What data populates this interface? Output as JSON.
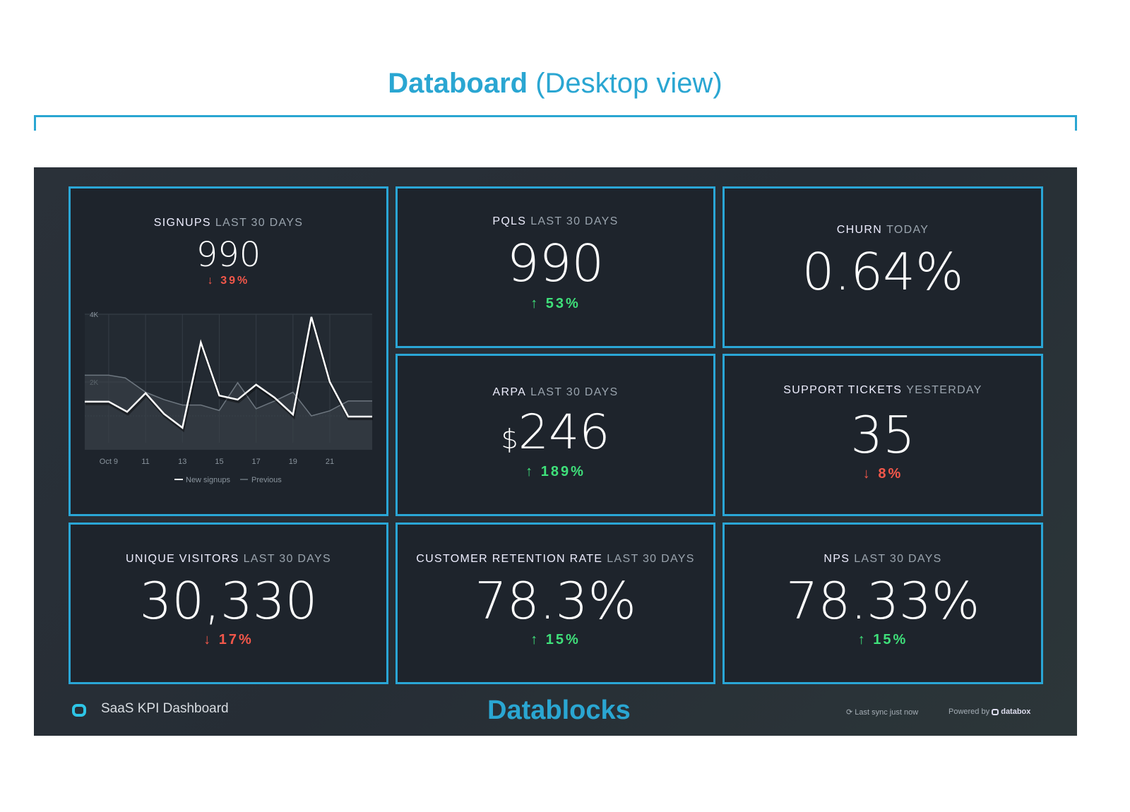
{
  "page": {
    "title_bold": "Databoard",
    "title_rest": "(Desktop view)"
  },
  "cards": [
    {
      "id": "signups",
      "metric": "SIGNUPS",
      "period": "LAST 30 DAYS",
      "value": "990",
      "change": "39%",
      "direction": "down"
    },
    {
      "id": "pqls",
      "metric": "PQLS",
      "period": "LAST 30 DAYS",
      "value": "990",
      "change": "53%",
      "direction": "up"
    },
    {
      "id": "churn",
      "metric": "CHURN",
      "period": "TODAY",
      "value": "0.64%"
    },
    {
      "id": "arpa",
      "metric": "ARPA",
      "period": "LAST 30 DAYS",
      "currency": "$",
      "value": "246",
      "change": "189%",
      "direction": "up"
    },
    {
      "id": "support",
      "metric": "SUPPORT TICKETS",
      "period": "YESTERDAY",
      "value": "35",
      "change": "8%",
      "direction": "down"
    },
    {
      "id": "visitors",
      "metric": "UNIQUE VISITORS",
      "period": "LAST 30 DAYS",
      "value": "30,330",
      "change": "17%",
      "direction": "down"
    },
    {
      "id": "retention",
      "metric": "CUSTOMER RETENTION RATE",
      "period": "LAST 30 DAYS",
      "value": "78.3%",
      "change": "15%",
      "direction": "up"
    },
    {
      "id": "nps",
      "metric": "NPS",
      "period": "LAST 30 DAYS",
      "value": "78.33%",
      "change": "15%",
      "direction": "up"
    }
  ],
  "chart_data": {
    "type": "line",
    "y_ticks": [
      "2K",
      "4K"
    ],
    "y_tick_values": [
      2000,
      4000
    ],
    "ylim": [
      0,
      4000
    ],
    "x_ticks": [
      "Oct 9",
      "11",
      "13",
      "15",
      "17",
      "19",
      "21"
    ],
    "x_tick_days": [
      9,
      11,
      13,
      15,
      17,
      19,
      21
    ],
    "xlim": [
      7.7,
      23.3
    ],
    "series": [
      {
        "name": "New signups",
        "days": [
          7.7,
          9,
          10,
          11,
          12,
          13,
          14,
          15,
          16,
          17,
          18,
          19,
          20,
          21,
          22,
          23.3
        ],
        "values": [
          1420,
          1420,
          1120,
          1670,
          1060,
          650,
          3170,
          1600,
          1480,
          1920,
          1540,
          1040,
          3920,
          2000,
          980,
          980
        ]
      },
      {
        "name": "Previous",
        "days": [
          7.7,
          9,
          9.9,
          11,
          12,
          13,
          14,
          15,
          16,
          17,
          18,
          19,
          20,
          21,
          22,
          23.3
        ],
        "values": [
          2200,
          2200,
          2120,
          1700,
          1480,
          1320,
          1320,
          1160,
          1980,
          1210,
          1440,
          1700,
          1000,
          1150,
          1440,
          1440
        ]
      }
    ]
  },
  "footer": {
    "dashboard_name": "SaaS KPI Dashboard",
    "brand": "Datablocks",
    "sync": "Last sync just now",
    "powered_by": "Powered by",
    "powered_brand": "databox"
  },
  "arrows": {
    "up": "↑",
    "down": "↓"
  }
}
